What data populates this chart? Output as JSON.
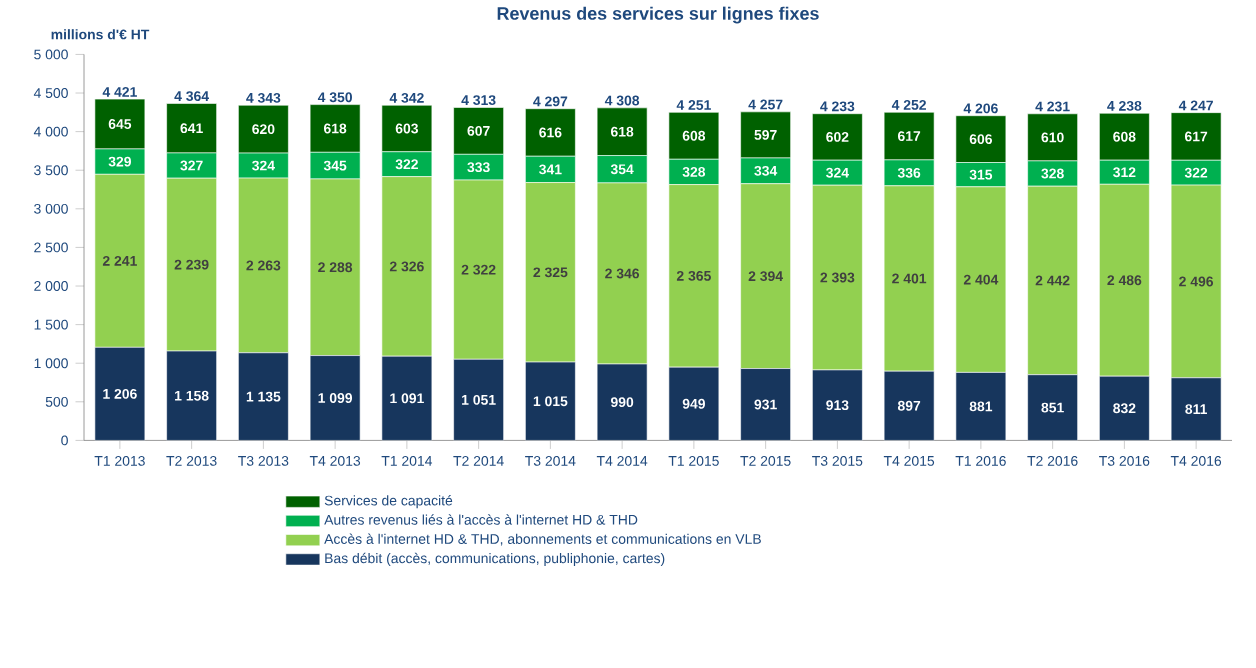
{
  "chart_data": {
    "type": "bar",
    "stacked": true,
    "title": "Revenus des services sur lignes fixes",
    "ylabel": "millions d'€ HT",
    "categories": [
      "T1 2013",
      "T2 2013",
      "T3 2013",
      "T4 2013",
      "T1 2014",
      "T2 2014",
      "T3 2014",
      "T4 2014",
      "T1 2015",
      "T2 2015",
      "T3 2015",
      "T4 2015",
      "T1 2016",
      "T2 2016",
      "T3 2016",
      "T4 2016"
    ],
    "series": [
      {
        "name": "Bas débit (accès, communications, publiphonie, cartes)",
        "color": "#17365d",
        "values": [
          1206,
          1158,
          1135,
          1099,
          1091,
          1051,
          1015,
          990,
          949,
          931,
          913,
          897,
          881,
          851,
          832,
          811
        ],
        "value_labels": [
          "1 206",
          "1 158",
          "1 135",
          "1 099",
          "1 091",
          "1 051",
          "1 015",
          "990",
          "949",
          "931",
          "913",
          "897",
          "881",
          "851",
          "832",
          "811"
        ]
      },
      {
        "name": "Accès à l'internet HD & THD,  abonnements et communications en VLB",
        "color": "#92d050",
        "values": [
          2241,
          2239,
          2263,
          2288,
          2326,
          2322,
          2325,
          2346,
          2365,
          2394,
          2393,
          2401,
          2404,
          2442,
          2486,
          2496
        ],
        "value_labels": [
          "2 241",
          "2 239",
          "2 263",
          "2 288",
          "2 326",
          "2 322",
          "2 325",
          "2 346",
          "2 365",
          "2 394",
          "2 393",
          "2 401",
          "2 404",
          "2 442",
          "2 486",
          "2 496"
        ]
      },
      {
        "name": "Autres revenus liés à l'accès à l'internet HD & THD",
        "color": "#00b050",
        "values": [
          329,
          327,
          324,
          345,
          322,
          333,
          341,
          354,
          328,
          334,
          324,
          336,
          315,
          328,
          312,
          322
        ],
        "value_labels": [
          "329",
          "327",
          "324",
          "345",
          "322",
          "333",
          "341",
          "354",
          "328",
          "334",
          "324",
          "336",
          "315",
          "328",
          "312",
          "322"
        ]
      },
      {
        "name": "Services de capacité",
        "color": "#006100",
        "values": [
          645,
          641,
          620,
          618,
          603,
          607,
          616,
          618,
          608,
          597,
          602,
          617,
          606,
          610,
          608,
          617
        ],
        "value_labels": [
          "645",
          "641",
          "620",
          "618",
          "603",
          "607",
          "616",
          "618",
          "608",
          "597",
          "602",
          "617",
          "606",
          "610",
          "608",
          "617"
        ]
      }
    ],
    "totals": [
      "4 421",
      "4 364",
      "4 343",
      "4 350",
      "4 342",
      "4 313",
      "4 297",
      "4 308",
      "4 251",
      "4 257",
      "4 233",
      "4 252",
      "4 206",
      "4 231",
      "4 238",
      "4 247"
    ],
    "ylim": [
      0,
      5000
    ],
    "yticks": [
      0,
      500,
      {
        "value": 1000,
        "label": "1 000"
      },
      {
        "value": 1500,
        "label": "1 500"
      },
      {
        "value": 2000,
        "label": "2 000"
      },
      {
        "value": 2500,
        "label": "2 500"
      },
      {
        "value": 3000,
        "label": "3 000"
      },
      {
        "value": 3500,
        "label": "3 500"
      },
      {
        "value": 4000,
        "label": "4 000"
      },
      {
        "value": 4500,
        "label": "4 500"
      },
      {
        "value": 5000,
        "label": "5 000"
      }
    ],
    "legend": "bottom"
  }
}
